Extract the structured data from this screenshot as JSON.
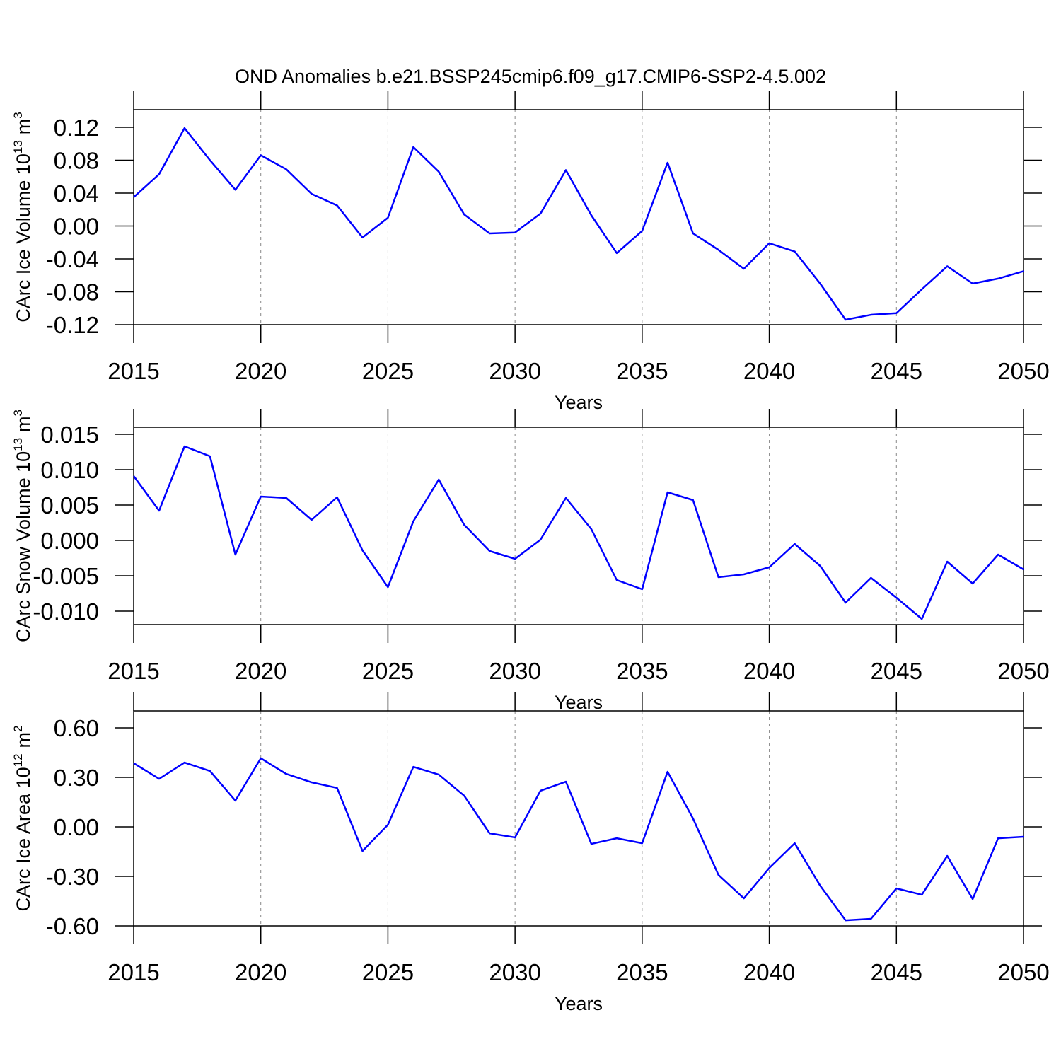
{
  "chart_data": [
    {
      "type": "line",
      "title": "OND Anomalies b.e21.BSSP245cmip6.f09_g17.CMIP6-SSP2-4.5.002",
      "xlabel": "Years",
      "ylabel": {
        "text": "CArc Ice Volume 10",
        "exponent": "13",
        "unit": "m",
        "unit_exponent": "3"
      },
      "x": [
        2015,
        2016,
        2017,
        2018,
        2019,
        2020,
        2021,
        2022,
        2023,
        2024,
        2025,
        2026,
        2027,
        2028,
        2029,
        2030,
        2031,
        2032,
        2033,
        2034,
        2035,
        2036,
        2037,
        2038,
        2039,
        2040,
        2041,
        2042,
        2043,
        2044,
        2045,
        2046,
        2047,
        2048,
        2049,
        2050
      ],
      "values": [
        0.035,
        0.063,
        0.119,
        0.08,
        0.044,
        0.086,
        0.069,
        0.039,
        0.025,
        -0.014,
        0.01,
        0.096,
        0.066,
        0.014,
        -0.009,
        -0.008,
        0.015,
        0.068,
        0.013,
        -0.033,
        -0.006,
        0.077,
        -0.009,
        -0.029,
        -0.052,
        -0.021,
        -0.031,
        -0.07,
        -0.114,
        -0.108,
        -0.106,
        -0.077,
        -0.049,
        -0.07,
        -0.064,
        -0.055
      ],
      "color": "#0000ff",
      "xlim": [
        2015,
        2050
      ],
      "xticks": [
        2015,
        2020,
        2025,
        2030,
        2035,
        2040,
        2045,
        2050
      ],
      "ylim": [
        -0.12,
        0.1415
      ],
      "yticks": [
        0.12,
        0.08,
        0.04,
        {
          "value": 0,
          "label": "0.00"
        },
        -0.04,
        -0.08,
        -0.12
      ],
      "grid": "x-dashed"
    },
    {
      "type": "line",
      "xlabel": "Years",
      "ylabel": {
        "text": "CArc Snow Volume 10",
        "exponent": "13",
        "unit": "m",
        "unit_exponent": "3"
      },
      "x": [
        2015,
        2016,
        2017,
        2018,
        2019,
        2020,
        2021,
        2022,
        2023,
        2024,
        2025,
        2026,
        2027,
        2028,
        2029,
        2030,
        2031,
        2032,
        2033,
        2034,
        2035,
        2036,
        2037,
        2038,
        2039,
        2040,
        2041,
        2042,
        2043,
        2044,
        2045,
        2046,
        2047,
        2048,
        2049,
        2050
      ],
      "values": [
        0.0091,
        0.0042,
        0.0133,
        0.0119,
        -0.002,
        0.0062,
        0.006,
        0.0029,
        0.0061,
        -0.0014,
        -0.0066,
        0.0027,
        0.0086,
        0.0022,
        -0.0015,
        -0.0026,
        0.0001,
        0.006,
        0.0016,
        -0.0056,
        -0.0069,
        0.0068,
        0.0057,
        -0.0052,
        -0.0048,
        -0.0038,
        -0.0005,
        -0.0036,
        -0.0088,
        -0.0053,
        -0.0081,
        -0.0111,
        -0.003,
        -0.0061,
        -0.002,
        -0.0041
      ],
      "color": "#0000ff",
      "xlim": [
        2015,
        2050
      ],
      "xticks": [
        2015,
        2020,
        2025,
        2030,
        2035,
        2040,
        2045,
        2050
      ],
      "ylim": [
        -0.0119,
        0.016
      ],
      "yticks": [
        0.015,
        {
          "value": 0.01,
          "label": "0.010"
        },
        0.005,
        {
          "value": 0,
          "label": "0.000"
        },
        -0.005,
        {
          "value": -0.01,
          "label": "-0.010"
        }
      ],
      "grid": "x-dashed"
    },
    {
      "type": "line",
      "xlabel": "Years",
      "ylabel": {
        "text": "CArc Ice Area 10",
        "exponent": "12",
        "unit": "m",
        "unit_exponent": "2"
      },
      "x": [
        2015,
        2016,
        2017,
        2018,
        2019,
        2020,
        2021,
        2022,
        2023,
        2024,
        2025,
        2026,
        2027,
        2028,
        2029,
        2030,
        2031,
        2032,
        2033,
        2034,
        2035,
        2036,
        2037,
        2038,
        2039,
        2040,
        2041,
        2042,
        2043,
        2044,
        2045,
        2046,
        2047,
        2048,
        2049,
        2050
      ],
      "values": [
        0.386,
        0.291,
        0.39,
        0.339,
        0.159,
        0.416,
        0.321,
        0.27,
        0.236,
        -0.146,
        0.013,
        0.364,
        0.317,
        0.189,
        -0.039,
        -0.064,
        0.219,
        0.274,
        -0.103,
        -0.069,
        -0.099,
        0.334,
        0.051,
        -0.291,
        -0.433,
        -0.249,
        -0.099,
        -0.356,
        -0.566,
        -0.557,
        -0.373,
        -0.411,
        -0.176,
        -0.437,
        -0.069,
        -0.06
      ],
      "color": "#0000ff",
      "xlim": [
        2015,
        2050
      ],
      "xticks": [
        2015,
        2020,
        2025,
        2030,
        2035,
        2040,
        2045,
        2050
      ],
      "ylim": [
        -0.6,
        0.703
      ],
      "yticks": [
        {
          "value": 0.6,
          "label": "0.60"
        },
        {
          "value": 0.3,
          "label": "0.30"
        },
        {
          "value": 0,
          "label": "0.00"
        },
        {
          "value": -0.3,
          "label": "-0.30"
        },
        {
          "value": -0.6,
          "label": "-0.60"
        }
      ],
      "grid": "x-dashed"
    }
  ]
}
